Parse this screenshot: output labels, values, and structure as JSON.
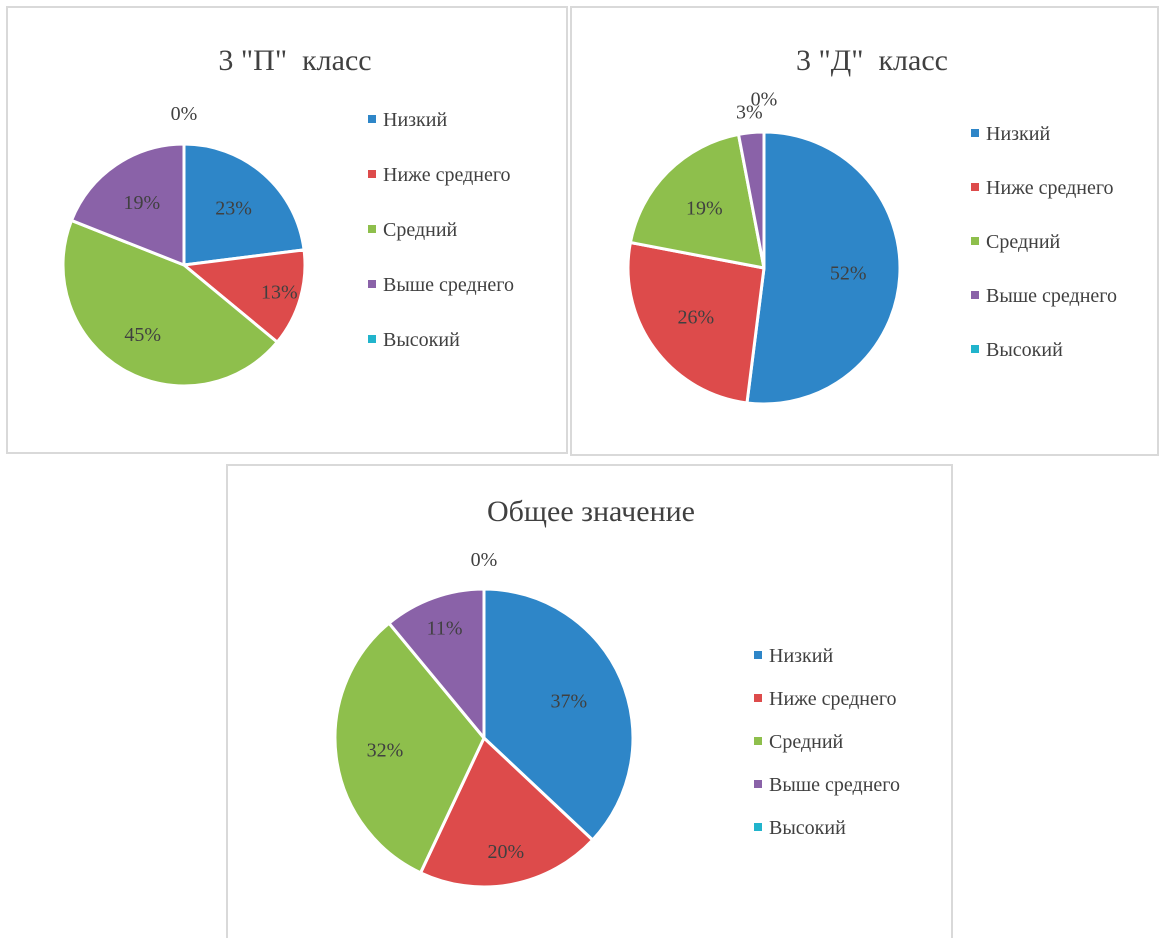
{
  "chart_data": [
    {
      "type": "pie",
      "title": "3 \"П\"  класс",
      "categories": [
        "Низкий",
        "Ниже среднего",
        "Средний",
        "Выше среднего",
        "Высокий"
      ],
      "values": [
        23,
        13,
        45,
        19,
        0
      ],
      "labels": [
        "23%",
        "13%",
        "45%",
        "19%",
        "0%"
      ],
      "colors": [
        "#2e86c8",
        "#dd4b4b",
        "#8ebf4c",
        "#8a62a8",
        "#21b4cc"
      ],
      "legend": "right"
    },
    {
      "type": "pie",
      "title": "3 \"Д\"  класс",
      "categories": [
        "Низкий",
        "Ниже среднего",
        "Средний",
        "Выше среднего",
        "Высокий"
      ],
      "values": [
        52,
        26,
        19,
        3,
        0
      ],
      "labels": [
        "52%",
        "26%",
        "19%",
        "3%",
        "0%"
      ],
      "colors": [
        "#2e86c8",
        "#dd4b4b",
        "#8ebf4c",
        "#8a62a8",
        "#21b4cc"
      ],
      "legend": "right"
    },
    {
      "type": "pie",
      "title": "Общее значение",
      "categories": [
        "Низкий",
        "Ниже среднего",
        "Средний",
        "Выше среднего",
        "Высокий"
      ],
      "values": [
        37,
        20,
        32,
        11,
        0
      ],
      "labels": [
        "37%",
        "20%",
        "32%",
        "11%",
        "0%"
      ],
      "colors": [
        "#2e86c8",
        "#dd4b4b",
        "#8ebf4c",
        "#8a62a8",
        "#21b4cc"
      ],
      "legend": "right"
    }
  ]
}
